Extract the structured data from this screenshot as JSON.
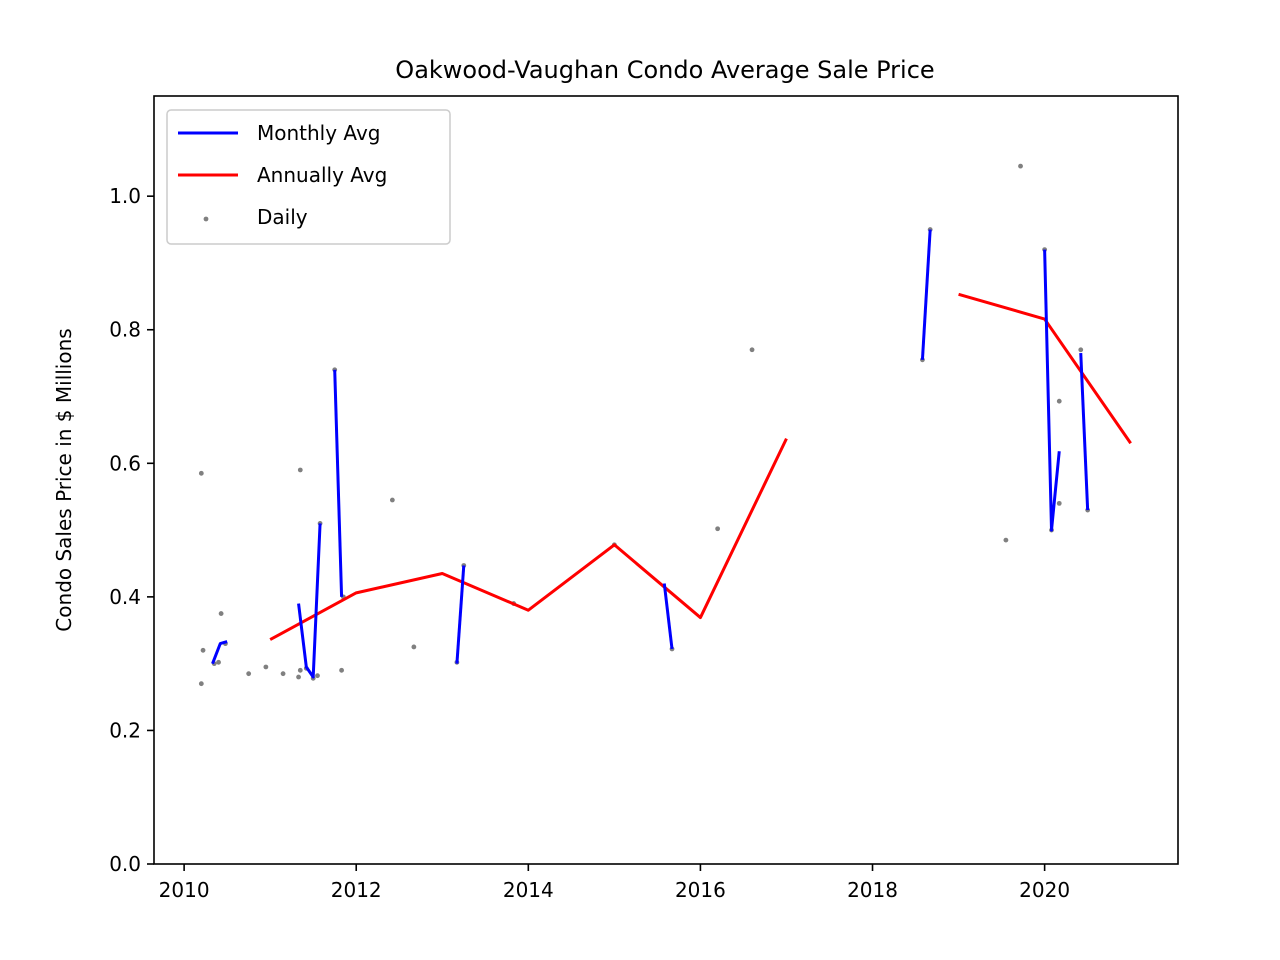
{
  "chart_data": {
    "type": "line",
    "title": "Oakwood-Vaughan Condo Average Sale Price",
    "xlabel": "",
    "ylabel": "Condo Sales Price in $ Millions",
    "xlim": [
      2009.65,
      2021.55
    ],
    "ylim": [
      0.0,
      1.15
    ],
    "x_ticks": [
      2010,
      2012,
      2014,
      2016,
      2018,
      2020
    ],
    "y_ticks": [
      0.0,
      0.2,
      0.4,
      0.6,
      0.8,
      1.0
    ],
    "y_tick_labels": [
      "0.0",
      "0.2",
      "0.4",
      "0.6",
      "0.8",
      "1.0"
    ],
    "grid": false,
    "legend_position": "top-left",
    "series": [
      {
        "name": "Monthly Avg",
        "kind": "line",
        "color": "#0000ff",
        "segments": [
          [
            [
              2010.33,
              0.3
            ],
            [
              2010.42,
              0.33
            ],
            [
              2010.5,
              0.333
            ]
          ],
          [
            [
              2011.33,
              0.39
            ],
            [
              2011.42,
              0.295
            ],
            [
              2011.5,
              0.28
            ],
            [
              2011.58,
              0.51
            ]
          ],
          [
            [
              2011.75,
              0.74
            ],
            [
              2011.83,
              0.4
            ]
          ],
          [
            [
              2013.17,
              0.3
            ],
            [
              2013.25,
              0.447
            ]
          ],
          [
            [
              2015.58,
              0.42
            ],
            [
              2015.67,
              0.322
            ]
          ],
          [
            [
              2018.58,
              0.755
            ],
            [
              2018.67,
              0.95
            ]
          ],
          [
            [
              2020.0,
              0.92
            ],
            [
              2020.08,
              0.5
            ],
            [
              2020.17,
              0.618
            ]
          ],
          [
            [
              2020.42,
              0.765
            ],
            [
              2020.5,
              0.53
            ]
          ]
        ]
      },
      {
        "name": "Annually Avg",
        "kind": "line",
        "color": "#ff0000",
        "segments": [
          [
            [
              2011,
              0.336
            ],
            [
              2012,
              0.406
            ],
            [
              2013,
              0.435
            ],
            [
              2014,
              0.38
            ],
            [
              2015,
              0.478
            ],
            [
              2016,
              0.369
            ],
            [
              2017,
              0.637
            ]
          ],
          [
            [
              2019,
              0.853
            ],
            [
              2020,
              0.816
            ],
            [
              2021,
              0.63
            ]
          ]
        ]
      },
      {
        "name": "Daily",
        "kind": "scatter",
        "color": "#808080",
        "points": [
          [
            2010.2,
            0.585
          ],
          [
            2010.2,
            0.27
          ],
          [
            2010.22,
            0.32
          ],
          [
            2010.35,
            0.3
          ],
          [
            2010.4,
            0.302
          ],
          [
            2010.43,
            0.375
          ],
          [
            2010.48,
            0.33
          ],
          [
            2010.75,
            0.285
          ],
          [
            2010.95,
            0.295
          ],
          [
            2011.15,
            0.285
          ],
          [
            2011.33,
            0.28
          ],
          [
            2011.35,
            0.29
          ],
          [
            2011.35,
            0.59
          ],
          [
            2011.42,
            0.293
          ],
          [
            2011.5,
            0.278
          ],
          [
            2011.55,
            0.282
          ],
          [
            2011.58,
            0.51
          ],
          [
            2011.75,
            0.74
          ],
          [
            2011.83,
            0.29
          ],
          [
            2011.85,
            0.4
          ],
          [
            2012.42,
            0.545
          ],
          [
            2012.67,
            0.325
          ],
          [
            2013.17,
            0.302
          ],
          [
            2013.25,
            0.447
          ],
          [
            2013.83,
            0.39
          ],
          [
            2015.0,
            0.478
          ],
          [
            2015.67,
            0.322
          ],
          [
            2016.2,
            0.502
          ],
          [
            2016.6,
            0.77
          ],
          [
            2018.58,
            0.755
          ],
          [
            2018.67,
            0.95
          ],
          [
            2019.55,
            0.485
          ],
          [
            2019.72,
            1.045
          ],
          [
            2020.0,
            0.92
          ],
          [
            2020.08,
            0.5
          ],
          [
            2020.17,
            0.693
          ],
          [
            2020.17,
            0.54
          ],
          [
            2020.42,
            0.77
          ],
          [
            2020.5,
            0.53
          ]
        ]
      }
    ]
  }
}
